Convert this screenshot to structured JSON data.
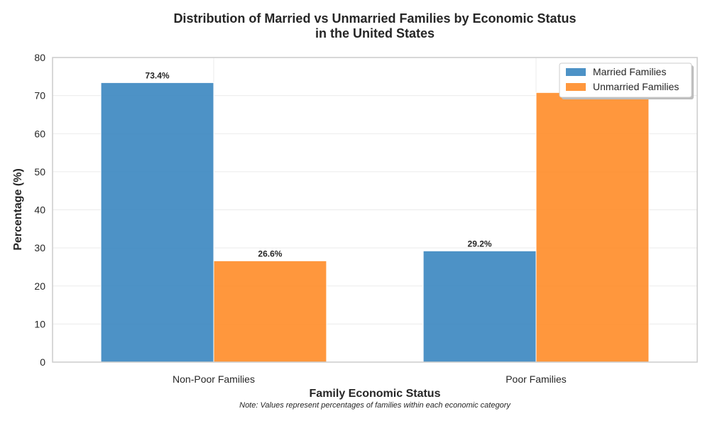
{
  "chart_data": {
    "type": "bar",
    "title": "Distribution of Married vs Unmarried Families by Economic Status",
    "title_line2": "in the United States",
    "xlabel": "Family Economic Status",
    "ylabel": "Percentage (%)",
    "note": "Note: Values represent percentages of families within each economic category",
    "categories": [
      "Non-Poor Families",
      "Poor Families"
    ],
    "series": [
      {
        "name": "Married Families",
        "values": [
          73.4,
          29.2
        ],
        "color": "#3a86c0",
        "labels": [
          "73.4%",
          "29.2%"
        ]
      },
      {
        "name": "Unmarried Families",
        "values": [
          26.6,
          70.8
        ],
        "color": "#ff8c28",
        "labels": [
          "26.6%",
          ""
        ]
      }
    ],
    "ylim": [
      0,
      80
    ],
    "yticks": [
      0,
      10,
      20,
      30,
      40,
      50,
      60,
      70,
      80
    ],
    "grid": true,
    "legend_position": "top-right"
  }
}
